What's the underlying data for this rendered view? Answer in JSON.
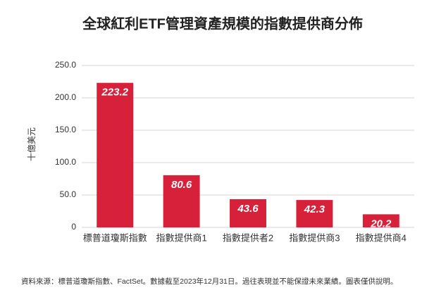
{
  "chart_data": {
    "type": "bar",
    "title": "全球紅利ETF管理資產規模的指數提供商分佈",
    "y_label": "十億美元",
    "categories": [
      "標普道瓊斯指數",
      "指數提供商1",
      "指數提供者2",
      "指數提供商3",
      "指數提供商4"
    ],
    "values": [
      223.2,
      80.6,
      43.6,
      42.3,
      20.2
    ],
    "color": "#d7213a",
    "ylim": [
      0,
      250
    ],
    "yticks": [
      0,
      {
        "value": 50,
        "label": "50.0"
      },
      {
        "value": 100,
        "label": "100.0"
      },
      {
        "value": 150,
        "label": "150.0"
      },
      {
        "value": 200,
        "label": "200.0"
      },
      {
        "value": 250,
        "label": "250.0"
      }
    ],
    "grid": true,
    "source": "資料來源：標普道瓊斯指數、FactSet。數據截至2023年12月31日。過往表現並不能保證未來業績。圖表僅供說明。"
  }
}
